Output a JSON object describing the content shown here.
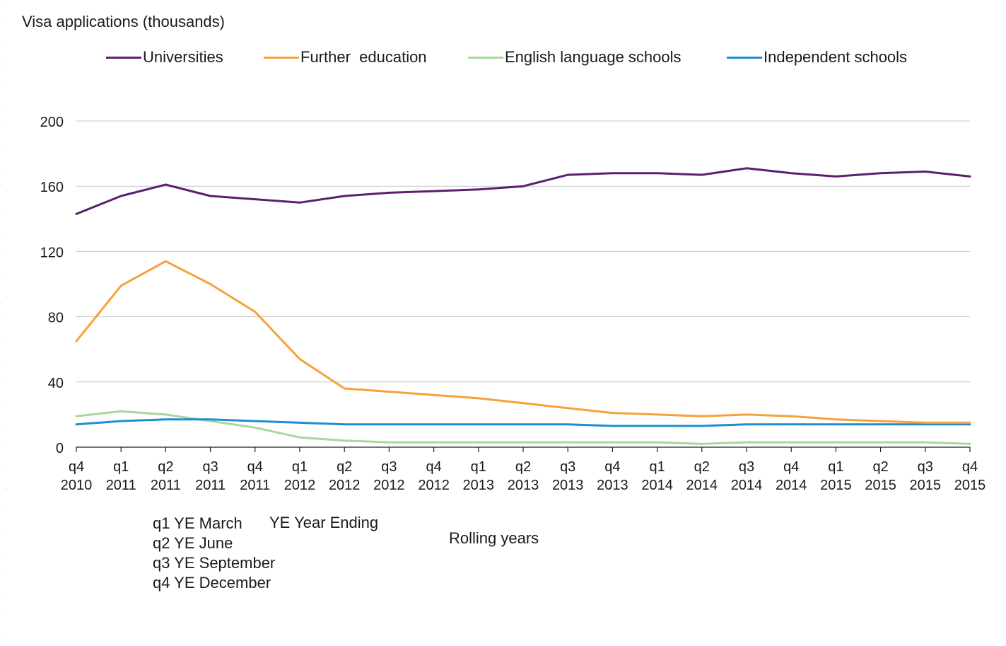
{
  "chart_data": {
    "type": "line",
    "ylabel": "Visa applications (thousands)",
    "xlabel": "Rolling years",
    "ylim": [
      0,
      200
    ],
    "yticks": [
      0,
      40,
      80,
      120,
      160,
      200
    ],
    "grid": true,
    "legend_position": "top",
    "categories": [
      {
        "q": "q4",
        "year": "2010"
      },
      {
        "q": "q1",
        "year": "2011"
      },
      {
        "q": "q2",
        "year": "2011"
      },
      {
        "q": "q3",
        "year": "2011"
      },
      {
        "q": "q4",
        "year": "2011"
      },
      {
        "q": "q1",
        "year": "2012"
      },
      {
        "q": "q2",
        "year": "2012"
      },
      {
        "q": "q3",
        "year": "2012"
      },
      {
        "q": "q4",
        "year": "2012"
      },
      {
        "q": "q1",
        "year": "2013"
      },
      {
        "q": "q2",
        "year": "2013"
      },
      {
        "q": "q3",
        "year": "2013"
      },
      {
        "q": "q4",
        "year": "2013"
      },
      {
        "q": "q1",
        "year": "2014"
      },
      {
        "q": "q2",
        "year": "2014"
      },
      {
        "q": "q3",
        "year": "2014"
      },
      {
        "q": "q4",
        "year": "2014"
      },
      {
        "q": "q1",
        "year": "2015"
      },
      {
        "q": "q2",
        "year": "2015"
      },
      {
        "q": "q3",
        "year": "2015"
      },
      {
        "q": "q4",
        "year": "2015"
      }
    ],
    "series": [
      {
        "name": "Universities",
        "color": "#5b1f6e",
        "values": [
          143,
          154,
          161,
          154,
          152,
          150,
          154,
          156,
          157,
          158,
          160,
          167,
          168,
          168,
          167,
          171,
          168,
          166,
          168,
          169,
          166
        ]
      },
      {
        "name": "Further  education",
        "color": "#f7a13b",
        "values": [
          65,
          99,
          114,
          100,
          83,
          54,
          36,
          34,
          32,
          30,
          27,
          24,
          21,
          20,
          19,
          20,
          19,
          17,
          16,
          15,
          15
        ]
      },
      {
        "name": "English language schools",
        "color": "#a8d89a",
        "values": [
          19,
          22,
          20,
          16,
          12,
          6,
          4,
          3,
          3,
          3,
          3,
          3,
          3,
          3,
          2,
          3,
          3,
          3,
          3,
          3,
          2
        ]
      },
      {
        "name": "Independent schools",
        "color": "#1e8ed0",
        "values": [
          14,
          16,
          17,
          17,
          16,
          15,
          14,
          14,
          14,
          14,
          14,
          14,
          13,
          13,
          13,
          14,
          14,
          14,
          14,
          14,
          14
        ]
      }
    ]
  },
  "notes": {
    "quarters": [
      "q1 YE March",
      "q2 YE June",
      "q3 YE September",
      "q4 YE December"
    ],
    "abbreviation": "YE Year Ending"
  }
}
